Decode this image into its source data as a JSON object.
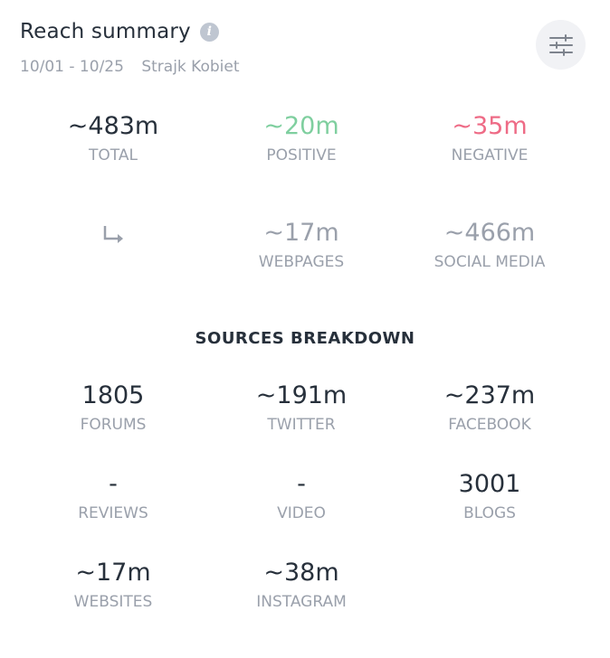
{
  "header": {
    "title": "Reach summary",
    "date_range": "10/01 - 10/25",
    "project": "Strajk Kobiet",
    "info_icon": "info-icon",
    "filter_icon": "sliders-icon"
  },
  "colors": {
    "positive": "#7fcf9f",
    "negative": "#ee6b86",
    "text": "#27303b",
    "muted": "#9aa0ab"
  },
  "summary": [
    {
      "value": "~483m",
      "label": "TOTAL"
    },
    {
      "value": "~20m",
      "label": "POSITIVE"
    },
    {
      "value": "~35m",
      "label": "NEGATIVE"
    }
  ],
  "split": {
    "arrow_icon": "arrow-turn-down-right-icon",
    "items": [
      {
        "value": "~17m",
        "label": "WEBPAGES"
      },
      {
        "value": "~466m",
        "label": "SOCIAL MEDIA"
      }
    ]
  },
  "sources": {
    "heading": "SOURCES BREAKDOWN",
    "items": [
      {
        "value": "1805",
        "label": "FORUMS"
      },
      {
        "value": "~191m",
        "label": "TWITTER"
      },
      {
        "value": "~237m",
        "label": "FACEBOOK"
      },
      {
        "value": "-",
        "label": "REVIEWS"
      },
      {
        "value": "-",
        "label": "VIDEO"
      },
      {
        "value": "3001",
        "label": "BLOGS"
      },
      {
        "value": "~17m",
        "label": "WEBSITES"
      },
      {
        "value": "~38m",
        "label": "INSTAGRAM"
      }
    ]
  }
}
